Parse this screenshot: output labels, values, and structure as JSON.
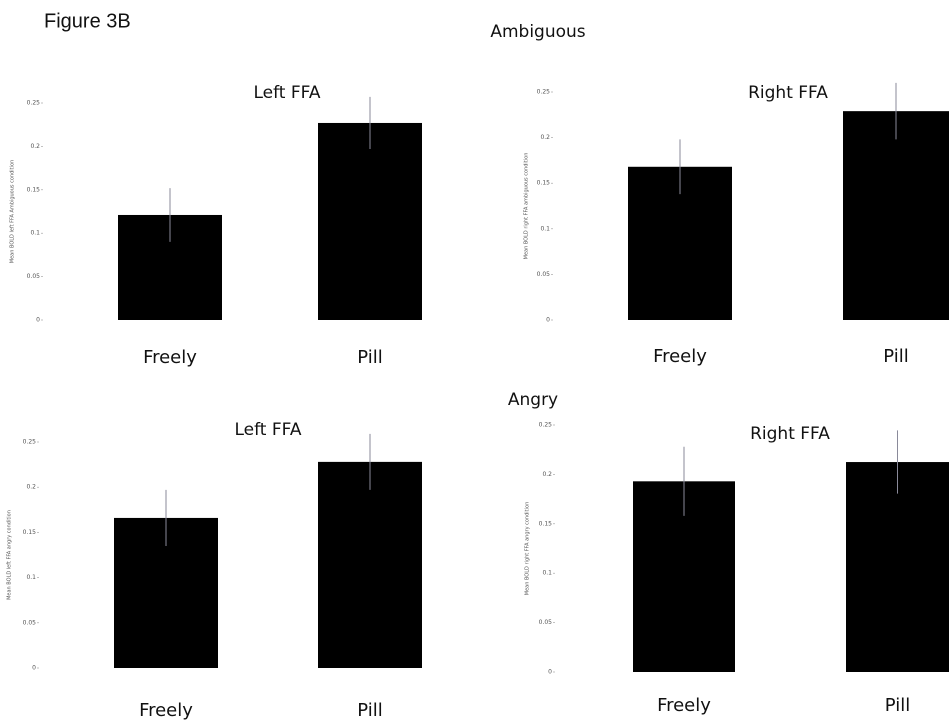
{
  "figure_title": "Figure 3B",
  "sections": [
    "Ambiguous",
    "Angry"
  ],
  "chart_data": [
    {
      "type": "bar",
      "title": "Left FFA",
      "y_label": "Mean BOLD left FFA Ambiguous condition",
      "categories": [
        "Freely",
        "Pill"
      ],
      "values": [
        0.121,
        0.227
      ],
      "errors": [
        0.031,
        0.03
      ],
      "color": "#000000",
      "ylim": [
        0,
        0.25
      ],
      "yticks": [
        0,
        0.05,
        0.1,
        0.15,
        0.2,
        0.25
      ]
    },
    {
      "type": "bar",
      "title": "Right FFA",
      "y_label": "Mean BOLD right FFA ambiguous condition",
      "categories": [
        "Freely",
        "Pill"
      ],
      "values": [
        0.168,
        0.229
      ],
      "errors": [
        0.03,
        0.031
      ],
      "color": "#000000",
      "ylim": [
        0,
        0.25
      ],
      "yticks": [
        0,
        0.05,
        0.1,
        0.15,
        0.2,
        0.25
      ]
    },
    {
      "type": "bar",
      "title": "Left FFA",
      "y_label": "Mean BOLD left FFA angry condition",
      "categories": [
        "Freely",
        "Pill"
      ],
      "values": [
        0.166,
        0.228
      ],
      "errors": [
        0.031,
        0.031
      ],
      "color": "#000000",
      "ylim": [
        0,
        0.25
      ],
      "yticks": [
        0,
        0.05,
        0.1,
        0.15,
        0.2,
        0.25
      ]
    },
    {
      "type": "bar",
      "title": "Right FFA",
      "y_label": "Mean BOLD right FFA angry condition",
      "categories": [
        "Freely",
        "Pill"
      ],
      "values": [
        0.193,
        0.2125
      ],
      "errors": [
        0.035,
        0.032
      ],
      "color": "#000000",
      "ylim": [
        0,
        0.25
      ],
      "yticks": [
        0,
        0.05,
        0.1,
        0.15,
        0.2,
        0.25
      ]
    }
  ]
}
